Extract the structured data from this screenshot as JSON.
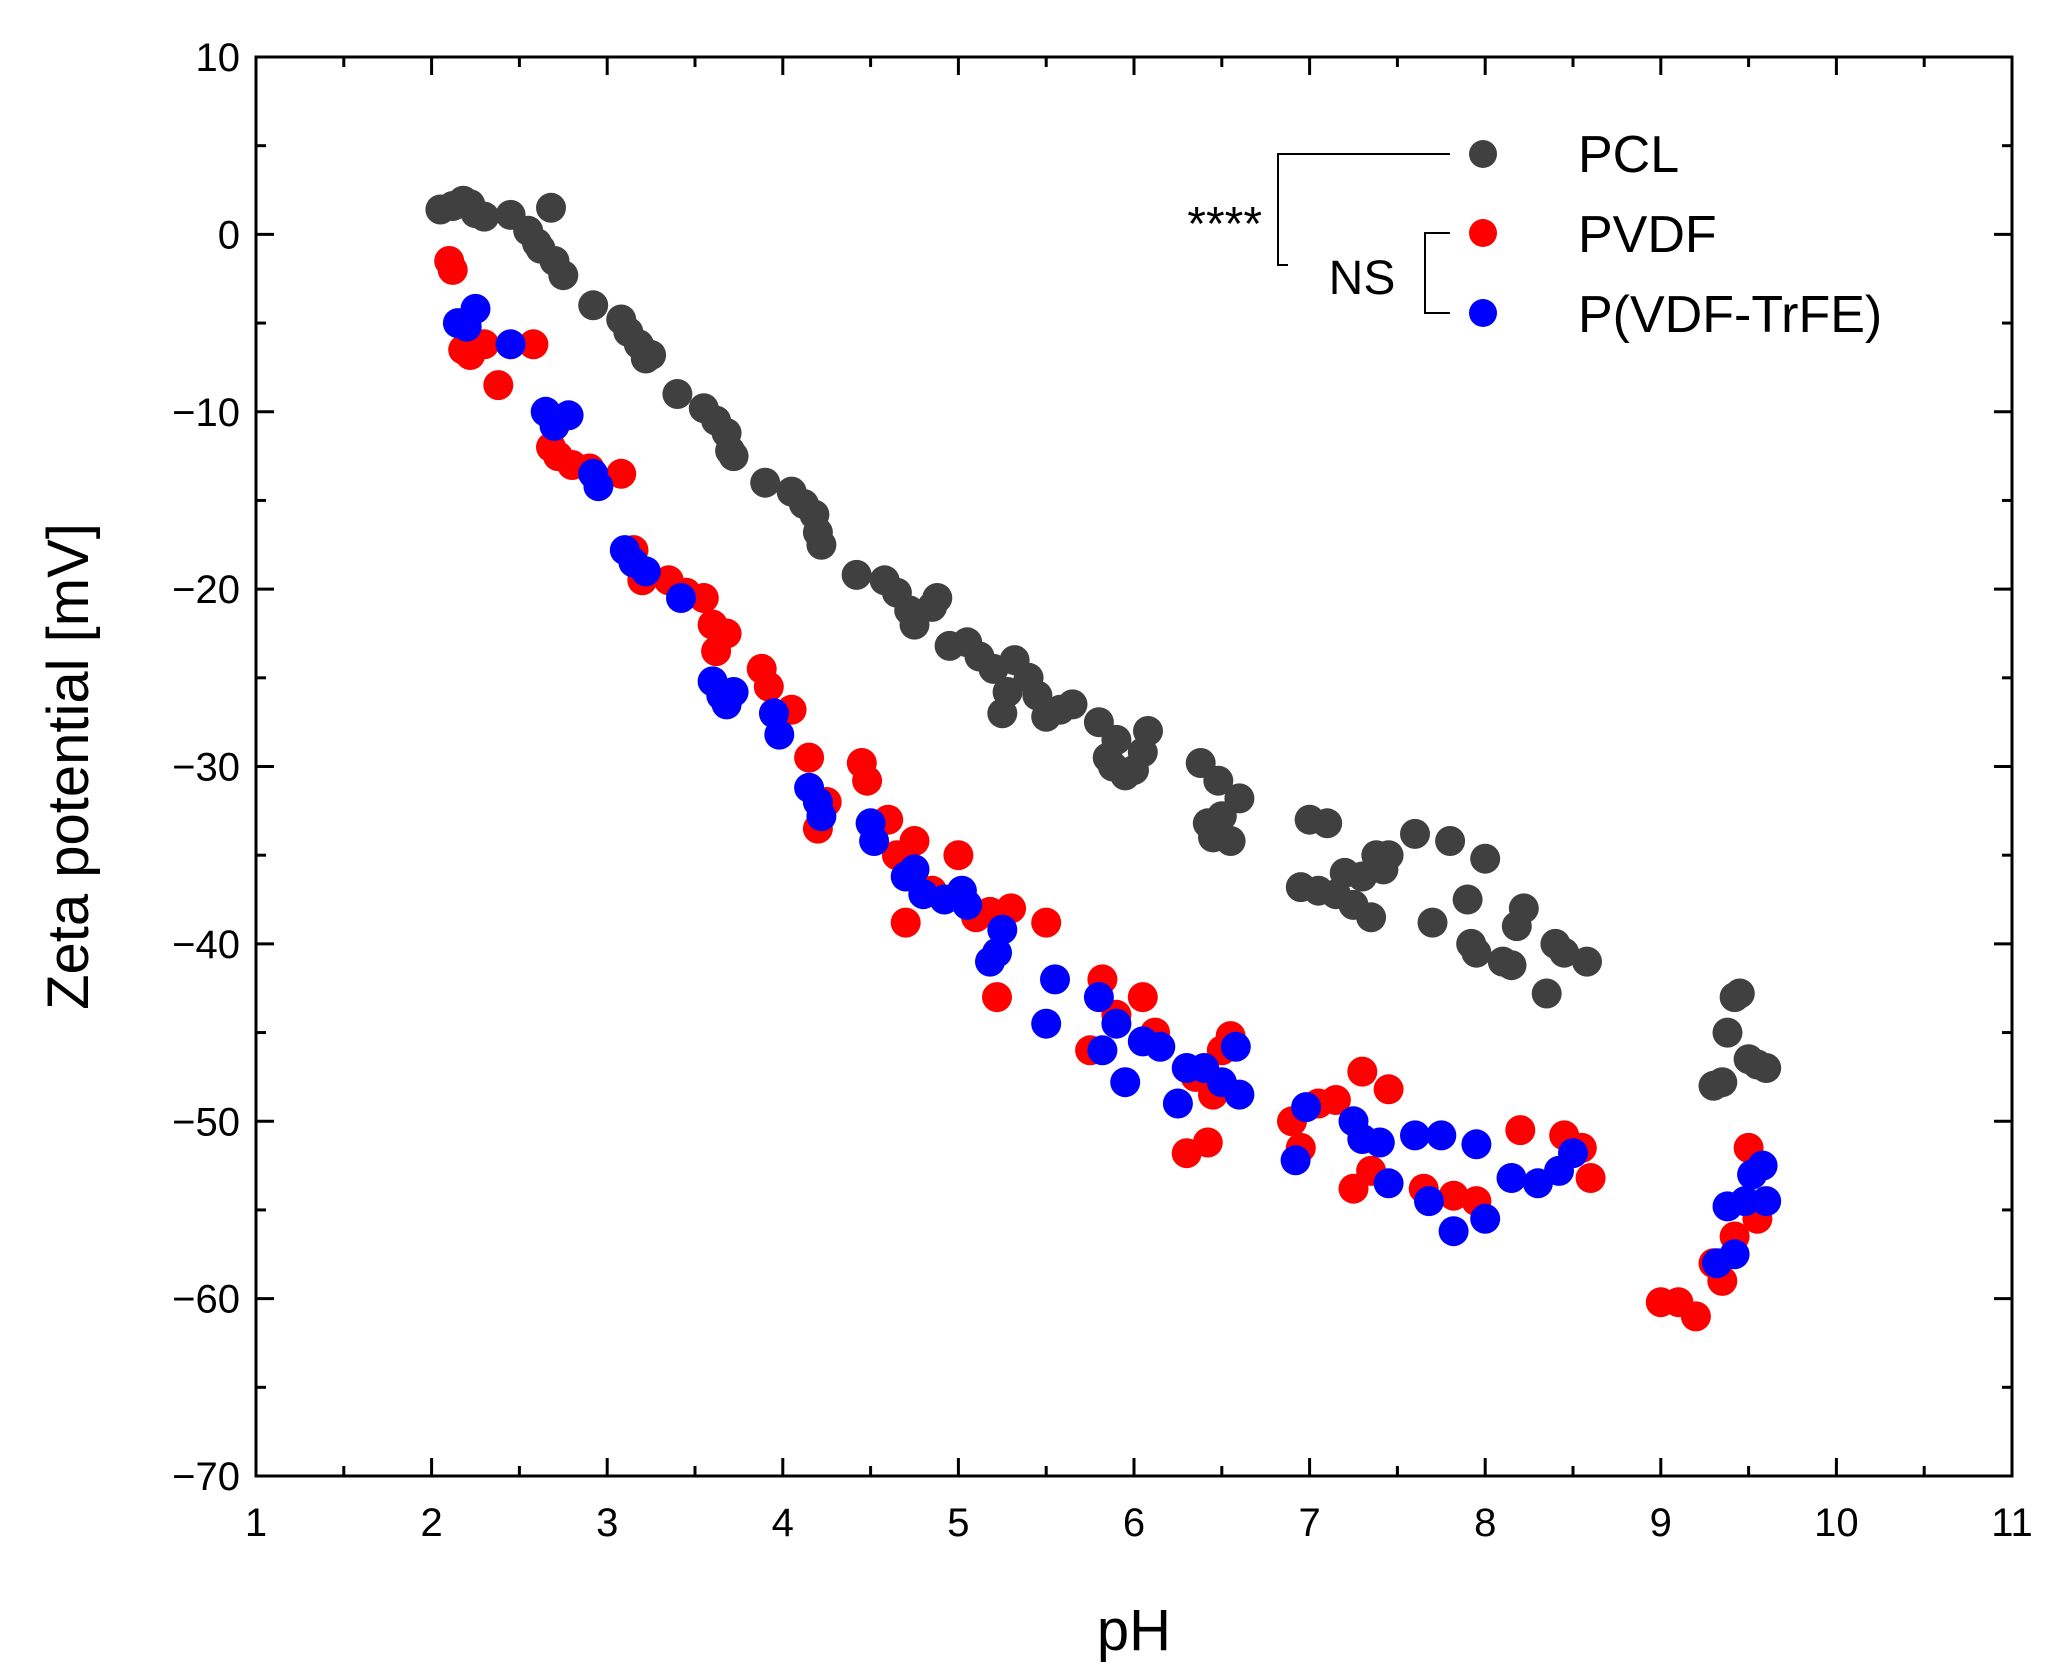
{
  "chart_data": {
    "type": "scatter",
    "title": "",
    "xlabel": "pH",
    "ylabel": "Zeta potential [mV]",
    "xlim": [
      1,
      11
    ],
    "ylim": [
      -70,
      10
    ],
    "xticks": [
      1,
      2,
      3,
      4,
      5,
      6,
      7,
      8,
      9,
      10,
      11
    ],
    "yticks": [
      10,
      0,
      -10,
      -20,
      -30,
      -40,
      -50,
      -60,
      -70
    ],
    "xtick_labels": [
      "1",
      "2",
      "3",
      "4",
      "5",
      "6",
      "7",
      "8",
      "9",
      "10",
      "11"
    ],
    "ytick_labels": [
      "10",
      "0",
      "−10",
      "−20",
      "−30",
      "−40",
      "−50",
      "−60",
      "−70"
    ],
    "grid": false,
    "legend_position": "top-right",
    "significance": {
      "pcl_vs_others": "****",
      "pvdf_vs_pvdftrfe": "NS"
    },
    "series": [
      {
        "name": "PCL",
        "color": "#404040",
        "points": [
          [
            2.05,
            1.4
          ],
          [
            2.12,
            1.6
          ],
          [
            2.18,
            1.9
          ],
          [
            2.22,
            1.7
          ],
          [
            2.25,
            1.2
          ],
          [
            2.3,
            1.0
          ],
          [
            2.45,
            1.1
          ],
          [
            2.55,
            0.2
          ],
          [
            2.6,
            -0.5
          ],
          [
            2.62,
            -0.8
          ],
          [
            2.68,
            1.5
          ],
          [
            2.7,
            -1.5
          ],
          [
            2.75,
            -2.3
          ],
          [
            2.92,
            -4.0
          ],
          [
            3.08,
            -4.8
          ],
          [
            3.12,
            -5.5
          ],
          [
            3.18,
            -6.2
          ],
          [
            3.22,
            -7.0
          ],
          [
            3.25,
            -6.8
          ],
          [
            3.4,
            -9.0
          ],
          [
            3.55,
            -9.8
          ],
          [
            3.62,
            -10.5
          ],
          [
            3.68,
            -11.2
          ],
          [
            3.7,
            -12.2
          ],
          [
            3.72,
            -12.5
          ],
          [
            3.9,
            -14.0
          ],
          [
            4.05,
            -14.5
          ],
          [
            4.12,
            -15.2
          ],
          [
            4.18,
            -15.8
          ],
          [
            4.2,
            -16.8
          ],
          [
            4.22,
            -17.5
          ],
          [
            4.42,
            -19.2
          ],
          [
            4.58,
            -19.5
          ],
          [
            4.65,
            -20.2
          ],
          [
            4.72,
            -21.2
          ],
          [
            4.75,
            -22.0
          ],
          [
            4.85,
            -21.0
          ],
          [
            4.88,
            -20.5
          ],
          [
            4.95,
            -23.2
          ],
          [
            5.05,
            -23.0
          ],
          [
            5.12,
            -23.8
          ],
          [
            5.2,
            -24.5
          ],
          [
            5.25,
            -27.0
          ],
          [
            5.28,
            -25.8
          ],
          [
            5.32,
            -24.0
          ],
          [
            5.4,
            -25.0
          ],
          [
            5.45,
            -26.0
          ],
          [
            5.5,
            -27.2
          ],
          [
            5.58,
            -26.8
          ],
          [
            5.65,
            -26.5
          ],
          [
            5.8,
            -27.5
          ],
          [
            5.85,
            -29.5
          ],
          [
            5.88,
            -30.0
          ],
          [
            5.9,
            -28.5
          ],
          [
            5.95,
            -30.5
          ],
          [
            6.0,
            -30.2
          ],
          [
            6.05,
            -29.2
          ],
          [
            6.08,
            -28.0
          ],
          [
            6.38,
            -29.8
          ],
          [
            6.42,
            -33.2
          ],
          [
            6.45,
            -34.0
          ],
          [
            6.48,
            -30.8
          ],
          [
            6.5,
            -32.8
          ],
          [
            6.55,
            -34.2
          ],
          [
            6.6,
            -31.8
          ],
          [
            6.95,
            -36.8
          ],
          [
            7.0,
            -33.0
          ],
          [
            7.05,
            -37.0
          ],
          [
            7.1,
            -33.2
          ],
          [
            7.15,
            -37.2
          ],
          [
            7.2,
            -36.0
          ],
          [
            7.25,
            -37.8
          ],
          [
            7.3,
            -36.2
          ],
          [
            7.35,
            -38.5
          ],
          [
            7.38,
            -35.0
          ],
          [
            7.42,
            -35.8
          ],
          [
            7.45,
            -35.0
          ],
          [
            7.6,
            -33.8
          ],
          [
            7.7,
            -38.8
          ],
          [
            7.8,
            -34.2
          ],
          [
            7.9,
            -37.5
          ],
          [
            7.92,
            -40.0
          ],
          [
            7.95,
            -40.5
          ],
          [
            8.0,
            -35.2
          ],
          [
            8.1,
            -41.0
          ],
          [
            8.15,
            -41.2
          ],
          [
            8.18,
            -39.0
          ],
          [
            8.22,
            -38.0
          ],
          [
            8.35,
            -42.8
          ],
          [
            8.4,
            -40.0
          ],
          [
            8.45,
            -40.5
          ],
          [
            8.58,
            -41.0
          ],
          [
            9.3,
            -48.0
          ],
          [
            9.35,
            -47.8
          ],
          [
            9.38,
            -45.0
          ],
          [
            9.42,
            -43.0
          ],
          [
            9.45,
            -42.8
          ],
          [
            9.5,
            -46.5
          ],
          [
            9.55,
            -46.8
          ],
          [
            9.6,
            -47.0
          ]
        ]
      },
      {
        "name": "PVDF",
        "color": "#ff0000",
        "points": [
          [
            2.1,
            -1.5
          ],
          [
            2.12,
            -2.0
          ],
          [
            2.18,
            -6.5
          ],
          [
            2.22,
            -6.8
          ],
          [
            2.3,
            -6.2
          ],
          [
            2.38,
            -8.5
          ],
          [
            2.58,
            -6.2
          ],
          [
            2.68,
            -12.0
          ],
          [
            2.72,
            -12.5
          ],
          [
            2.8,
            -13.0
          ],
          [
            2.9,
            -13.2
          ],
          [
            3.08,
            -13.5
          ],
          [
            3.15,
            -17.8
          ],
          [
            3.2,
            -19.5
          ],
          [
            3.35,
            -19.5
          ],
          [
            3.45,
            -20.2
          ],
          [
            3.55,
            -20.5
          ],
          [
            3.6,
            -22.0
          ],
          [
            3.62,
            -23.5
          ],
          [
            3.68,
            -22.5
          ],
          [
            3.88,
            -24.5
          ],
          [
            3.92,
            -25.5
          ],
          [
            3.95,
            -27.0
          ],
          [
            4.05,
            -26.8
          ],
          [
            4.15,
            -29.5
          ],
          [
            4.2,
            -33.5
          ],
          [
            4.25,
            -32.0
          ],
          [
            4.45,
            -29.8
          ],
          [
            4.48,
            -30.8
          ],
          [
            4.6,
            -33.0
          ],
          [
            4.65,
            -35.0
          ],
          [
            4.7,
            -38.8
          ],
          [
            4.75,
            -34.2
          ],
          [
            4.85,
            -37.0
          ],
          [
            5.0,
            -35.0
          ],
          [
            5.1,
            -38.5
          ],
          [
            5.18,
            -38.2
          ],
          [
            5.22,
            -43.0
          ],
          [
            5.3,
            -38.0
          ],
          [
            5.5,
            -38.8
          ],
          [
            5.75,
            -46.0
          ],
          [
            5.82,
            -42.0
          ],
          [
            5.9,
            -44.0
          ],
          [
            6.05,
            -43.0
          ],
          [
            6.12,
            -45.0
          ],
          [
            6.3,
            -51.8
          ],
          [
            6.35,
            -47.5
          ],
          [
            6.42,
            -51.2
          ],
          [
            6.45,
            -48.5
          ],
          [
            6.5,
            -46.0
          ],
          [
            6.55,
            -45.2
          ],
          [
            6.9,
            -50.0
          ],
          [
            6.95,
            -51.5
          ],
          [
            7.05,
            -49.0
          ],
          [
            7.15,
            -48.8
          ],
          [
            7.25,
            -53.8
          ],
          [
            7.3,
            -47.2
          ],
          [
            7.35,
            -52.8
          ],
          [
            7.45,
            -48.2
          ],
          [
            7.65,
            -53.8
          ],
          [
            7.82,
            -54.2
          ],
          [
            7.95,
            -54.5
          ],
          [
            8.2,
            -50.5
          ],
          [
            8.45,
            -50.8
          ],
          [
            8.55,
            -51.5
          ],
          [
            8.6,
            -53.2
          ],
          [
            9.0,
            -60.2
          ],
          [
            9.1,
            -60.2
          ],
          [
            9.2,
            -61.0
          ],
          [
            9.3,
            -58.0
          ],
          [
            9.35,
            -59.0
          ],
          [
            9.42,
            -56.5
          ],
          [
            9.5,
            -51.5
          ],
          [
            9.55,
            -55.5
          ]
        ]
      },
      {
        "name": "P(VDF-TrFE)",
        "color": "#0000ff",
        "points": [
          [
            2.15,
            -5.0
          ],
          [
            2.2,
            -5.2
          ],
          [
            2.25,
            -4.2
          ],
          [
            2.45,
            -6.2
          ],
          [
            2.65,
            -10.0
          ],
          [
            2.7,
            -10.8
          ],
          [
            2.78,
            -10.2
          ],
          [
            2.92,
            -13.5
          ],
          [
            2.95,
            -14.2
          ],
          [
            3.1,
            -17.8
          ],
          [
            3.15,
            -18.5
          ],
          [
            3.22,
            -19.0
          ],
          [
            3.42,
            -20.5
          ],
          [
            3.6,
            -25.2
          ],
          [
            3.65,
            -26.0
          ],
          [
            3.68,
            -26.5
          ],
          [
            3.72,
            -25.8
          ],
          [
            3.95,
            -27.0
          ],
          [
            3.98,
            -28.2
          ],
          [
            4.15,
            -31.2
          ],
          [
            4.2,
            -32.0
          ],
          [
            4.22,
            -32.8
          ],
          [
            4.5,
            -33.2
          ],
          [
            4.52,
            -34.2
          ],
          [
            4.7,
            -36.2
          ],
          [
            4.75,
            -35.8
          ],
          [
            4.8,
            -37.2
          ],
          [
            4.92,
            -37.5
          ],
          [
            5.02,
            -37.0
          ],
          [
            5.05,
            -37.8
          ],
          [
            5.18,
            -41.0
          ],
          [
            5.22,
            -40.5
          ],
          [
            5.25,
            -39.2
          ],
          [
            5.5,
            -44.5
          ],
          [
            5.55,
            -42.0
          ],
          [
            5.8,
            -43.0
          ],
          [
            5.82,
            -46.0
          ],
          [
            5.9,
            -44.5
          ],
          [
            5.95,
            -47.8
          ],
          [
            6.05,
            -45.5
          ],
          [
            6.15,
            -45.8
          ],
          [
            6.25,
            -49.0
          ],
          [
            6.3,
            -47.0
          ],
          [
            6.4,
            -47.0
          ],
          [
            6.5,
            -47.8
          ],
          [
            6.58,
            -45.8
          ],
          [
            6.6,
            -48.5
          ],
          [
            6.92,
            -52.2
          ],
          [
            6.98,
            -49.2
          ],
          [
            7.25,
            -50.0
          ],
          [
            7.3,
            -51.0
          ],
          [
            7.4,
            -51.2
          ],
          [
            7.45,
            -53.5
          ],
          [
            7.6,
            -50.8
          ],
          [
            7.68,
            -54.5
          ],
          [
            7.75,
            -50.8
          ],
          [
            7.82,
            -56.2
          ],
          [
            7.95,
            -51.3
          ],
          [
            8.0,
            -55.5
          ],
          [
            8.15,
            -53.2
          ],
          [
            8.3,
            -53.5
          ],
          [
            8.42,
            -52.8
          ],
          [
            8.5,
            -51.8
          ],
          [
            9.32,
            -58.0
          ],
          [
            9.38,
            -54.8
          ],
          [
            9.42,
            -57.5
          ],
          [
            9.48,
            -54.5
          ],
          [
            9.52,
            -53.0
          ],
          [
            9.58,
            -52.5
          ],
          [
            9.6,
            -54.5
          ]
        ]
      }
    ]
  }
}
